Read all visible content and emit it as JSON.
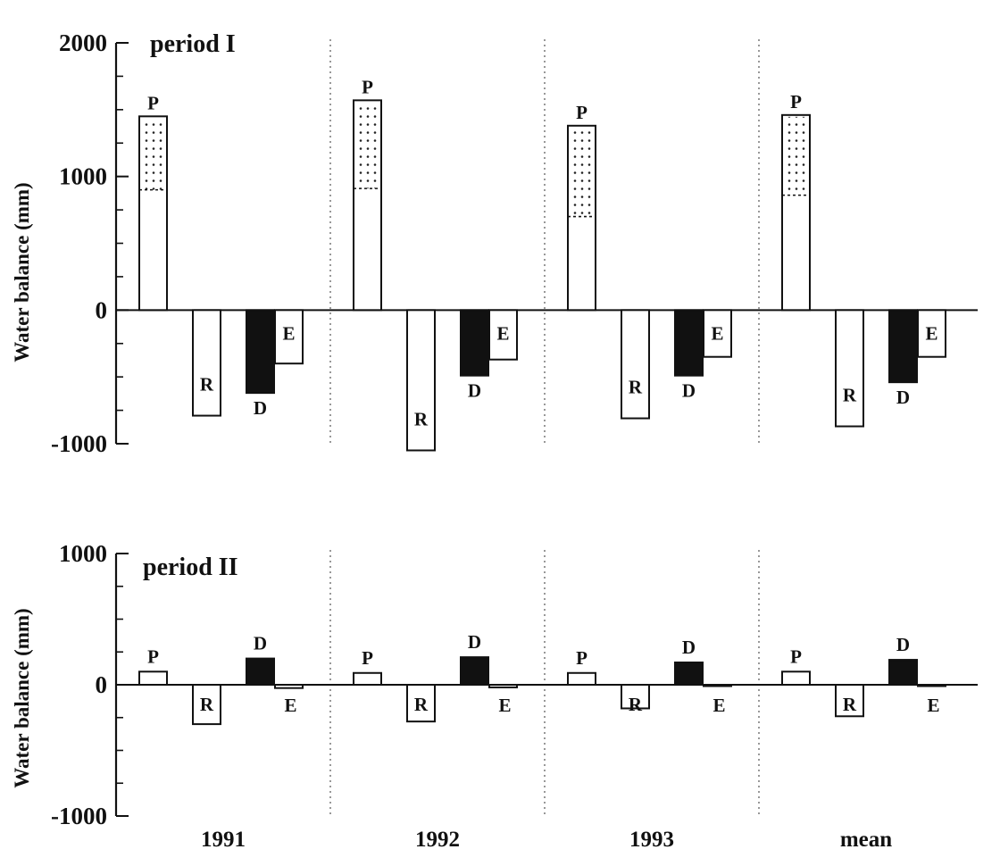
{
  "chart_data": [
    {
      "type": "bar",
      "title": "period I",
      "ylabel": "Water balance (mm)",
      "ylim": [
        -1000,
        2000
      ],
      "yticks": [
        2000,
        1000,
        0,
        -1000
      ],
      "categories": [
        "1991",
        "1992",
        "1993",
        "mean"
      ],
      "series": [
        {
          "name": "P",
          "values": [
            1450,
            1570,
            1380,
            1460
          ],
          "split": [
            900,
            910,
            700,
            860
          ]
        },
        {
          "name": "R",
          "values": [
            -790,
            -1050,
            -810,
            -870
          ]
        },
        {
          "name": "D",
          "values": [
            -620,
            -490,
            -490,
            -540
          ]
        },
        {
          "name": "E",
          "values": [
            -400,
            -370,
            -350,
            -350
          ]
        }
      ]
    },
    {
      "type": "bar",
      "title": "period II",
      "ylabel": "Water balance (mm)",
      "ylim": [
        -1000,
        1000
      ],
      "yticks": [
        1000,
        0,
        -1000
      ],
      "categories": [
        "1991",
        "1992",
        "1993",
        "mean"
      ],
      "series": [
        {
          "name": "P",
          "values": [
            100,
            90,
            90,
            100
          ]
        },
        {
          "name": "R",
          "values": [
            -300,
            -280,
            -180,
            -240
          ]
        },
        {
          "name": "D",
          "values": [
            200,
            210,
            170,
            190
          ]
        },
        {
          "name": "E",
          "values": [
            -25,
            -20,
            -10,
            -10
          ]
        }
      ]
    }
  ]
}
